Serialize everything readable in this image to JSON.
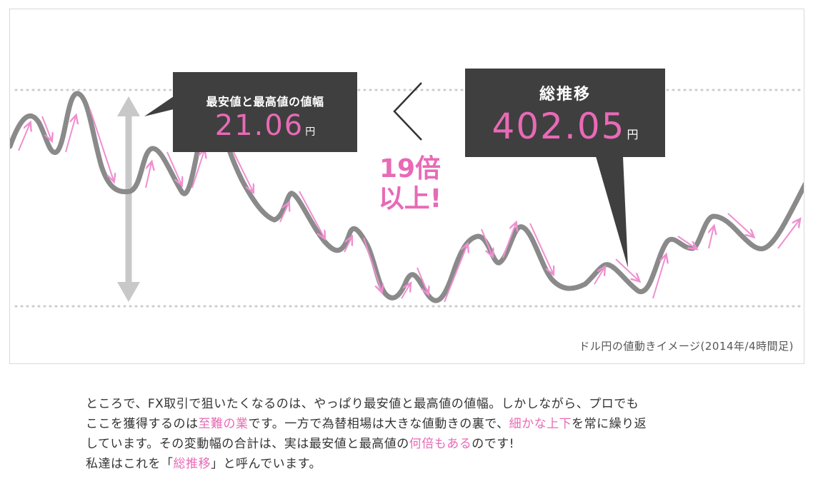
{
  "figure": {
    "range_callout": {
      "title": "最安値と最高値の値幅",
      "value": "21.06",
      "unit": "円"
    },
    "comparison_symbol": "<",
    "total_callout": {
      "title": "総推移",
      "value": "402.05",
      "unit": "円"
    },
    "ratio_line1": "19倍",
    "ratio_line2": "以上!",
    "caption": "ドル円の値動きイメージ(2014年/4時間足)",
    "colors": {
      "price_line": "#8a8a8a",
      "arrows": "#ef8fd0",
      "callout_bg": "#3f3f3f",
      "accent": "#e86ab6",
      "range_arrow": "#c8c8c8"
    }
  },
  "body": {
    "line1_part1": "ところで、FX取引で狙いたくなるのは、やっぱり最安値と最高値の値幅。しかしながら、プロでも",
    "line2_part1": "ここを獲得するのは",
    "line2_hl1": "至難の業",
    "line2_part2": "です。一方で為替相場は大きな値動きの裏で、",
    "line2_hl2": "細かな上下",
    "line2_part3": "を常に繰り返",
    "line3_part1": "しています。その変動幅の合計は、実は最安値と最高値の",
    "line3_hl1": "何倍もある",
    "line3_part2": "のです!",
    "line4_part1": "私達はこれを「",
    "line4_hl1": "総推移",
    "line4_part2": "」と呼んでいます。"
  }
}
